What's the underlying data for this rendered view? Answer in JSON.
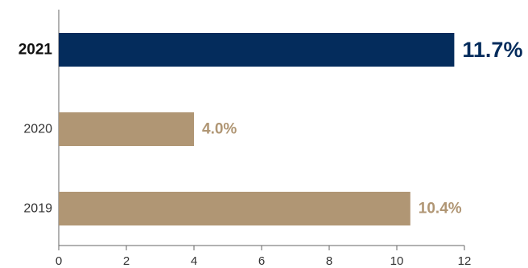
{
  "chart_data": {
    "type": "bar",
    "orientation": "horizontal",
    "categories": [
      "2021",
      "2020",
      "2019"
    ],
    "values": [
      11.7,
      4.0,
      10.4
    ],
    "value_labels": [
      "11.7%",
      "4.0%",
      "10.4%"
    ],
    "highlight_index": 0,
    "xlim": [
      0,
      12
    ],
    "xticks": [
      "0",
      "2",
      "4",
      "6",
      "8",
      "10",
      "12"
    ],
    "grid": false,
    "legend": "none",
    "colors": {
      "highlight_bar": "#042c5c",
      "highlight_label": "#042c5c",
      "default_bar": "#b09674",
      "default_label": "#b09674",
      "axis": "#666666"
    }
  }
}
